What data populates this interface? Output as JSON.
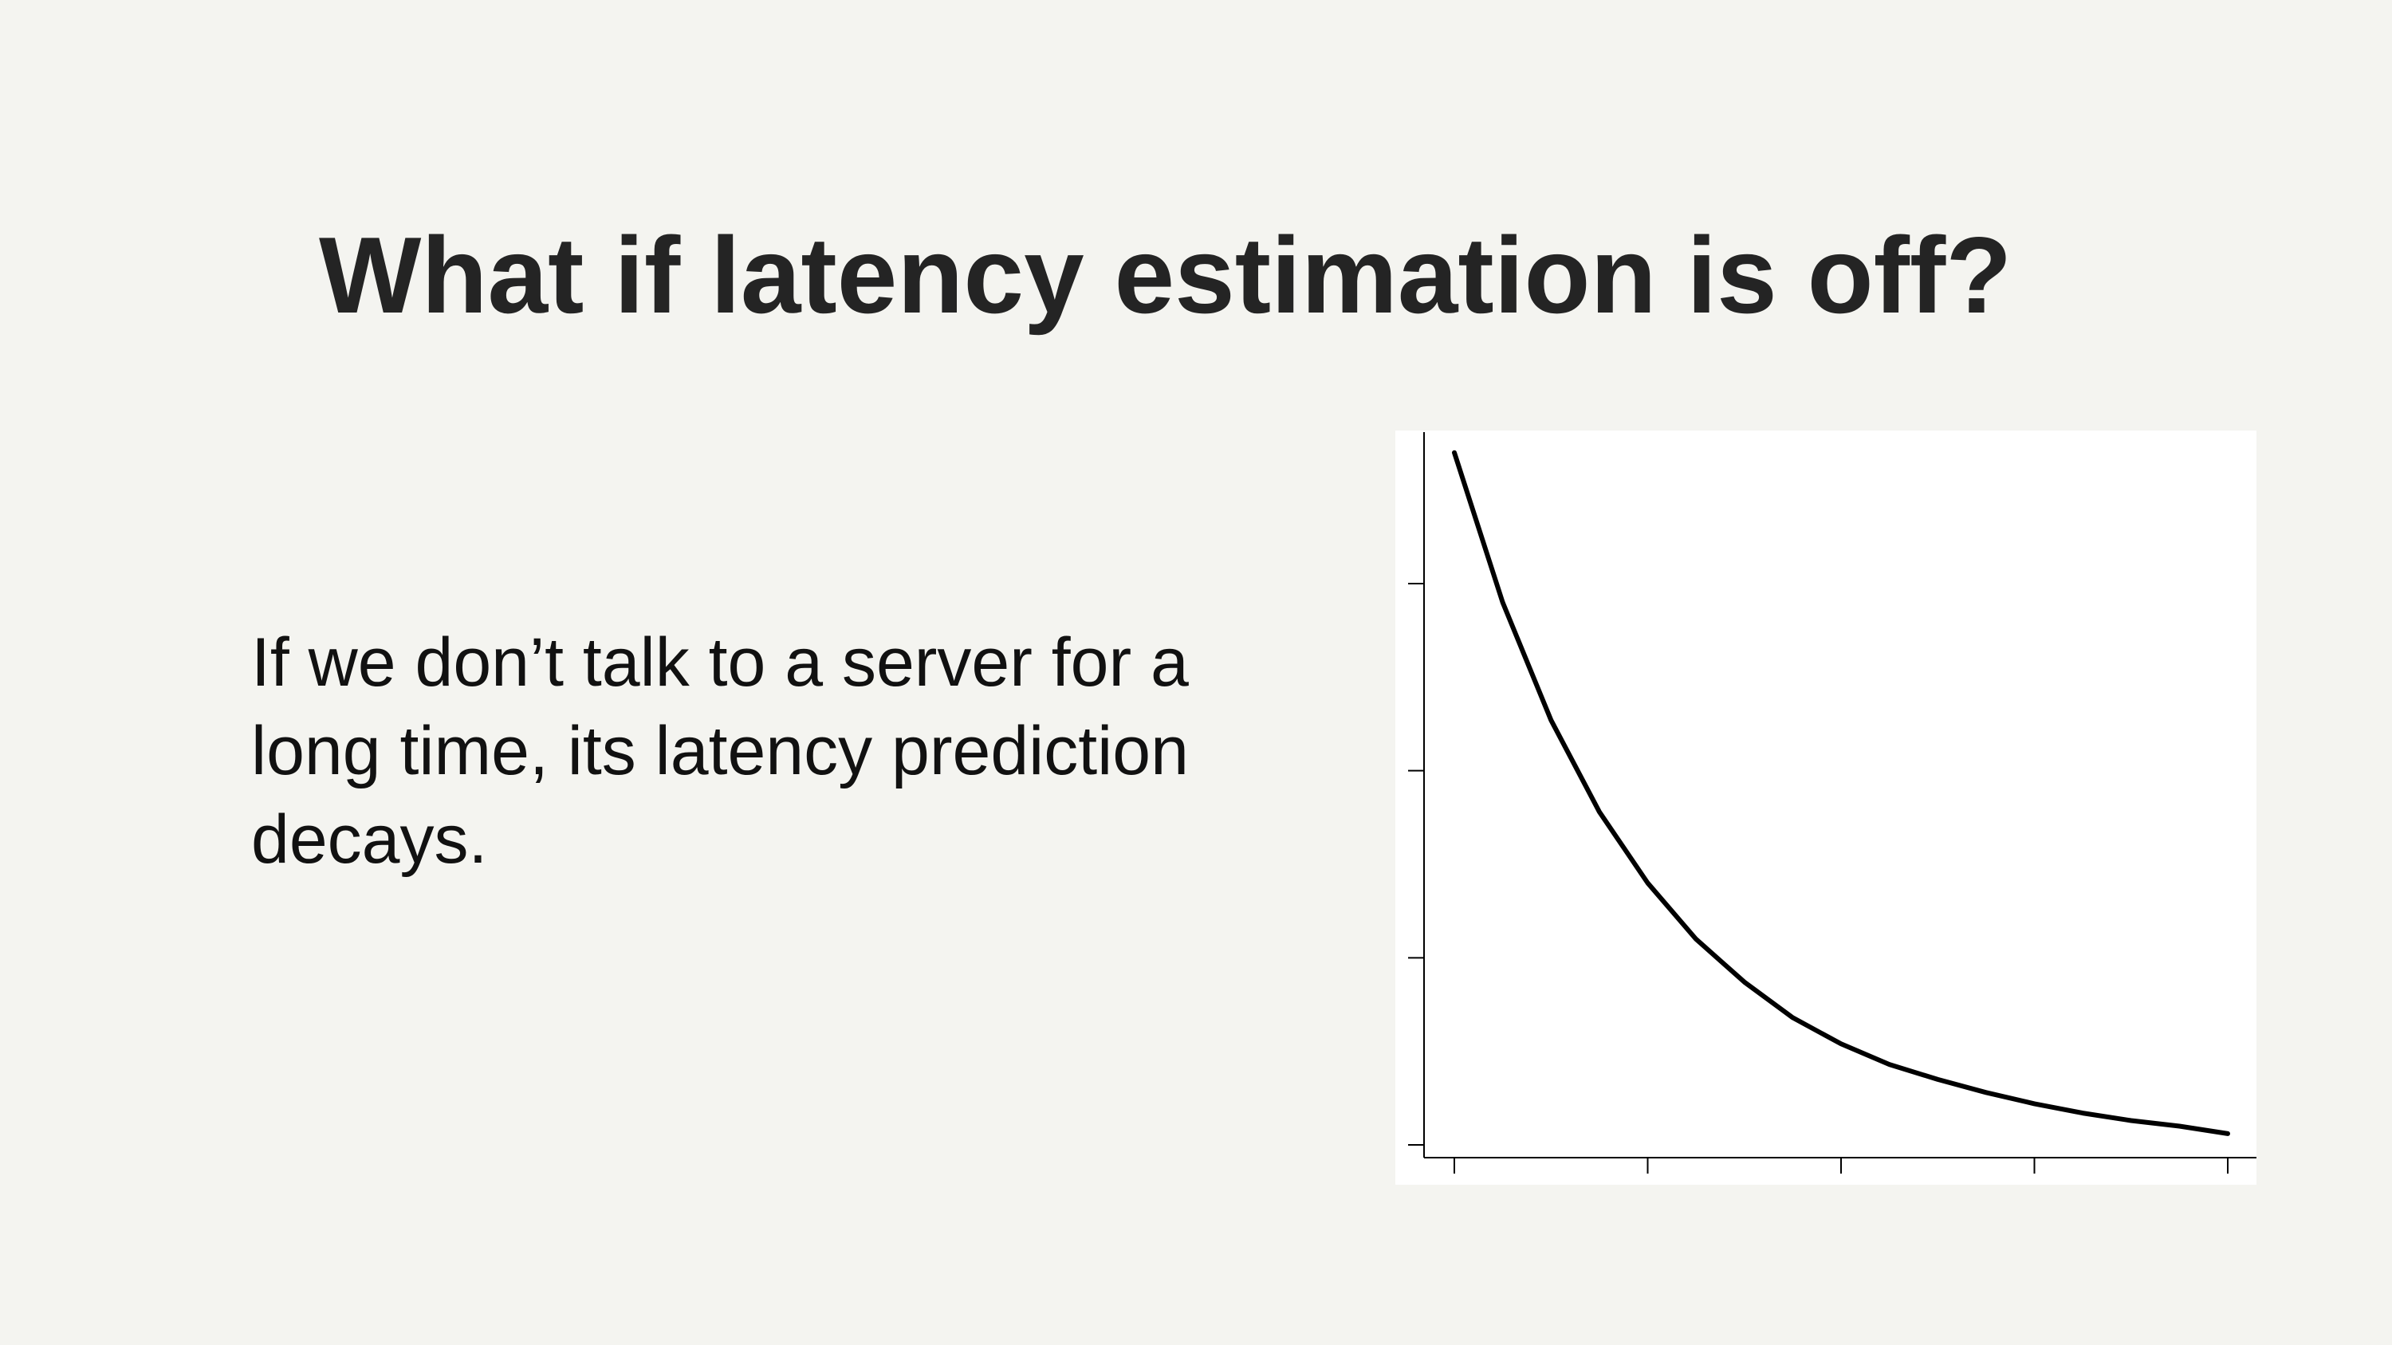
{
  "slide": {
    "title": "What if latency estimation is off?",
    "body": "If we don’t talk to a server for a long time, its latency prediction decays."
  },
  "colors": {
    "background": "#f4f4f0",
    "title": "#242424",
    "text": "#111111",
    "chart_panel": "#ffffff",
    "chart_line": "#000000"
  },
  "chart_data": {
    "type": "line",
    "title": "",
    "xlabel": "",
    "ylabel": "",
    "x_ticks": [
      0,
      1,
      2,
      3,
      4
    ],
    "y_ticks": [
      0,
      1,
      2,
      3
    ],
    "xlim": [
      0,
      4
    ],
    "ylim": [
      0,
      3
    ],
    "grid": false,
    "legend": "none",
    "x": [
      0,
      0.25,
      0.5,
      0.75,
      1.0,
      1.25,
      1.5,
      1.75,
      2.0,
      2.25,
      2.5,
      2.75,
      3.0,
      3.25,
      3.5,
      3.75,
      4.0
    ],
    "y": [
      3.7,
      2.9,
      2.27,
      1.78,
      1.4,
      1.1,
      0.87,
      0.68,
      0.54,
      0.43,
      0.35,
      0.28,
      0.22,
      0.17,
      0.13,
      0.1,
      0.06
    ]
  }
}
